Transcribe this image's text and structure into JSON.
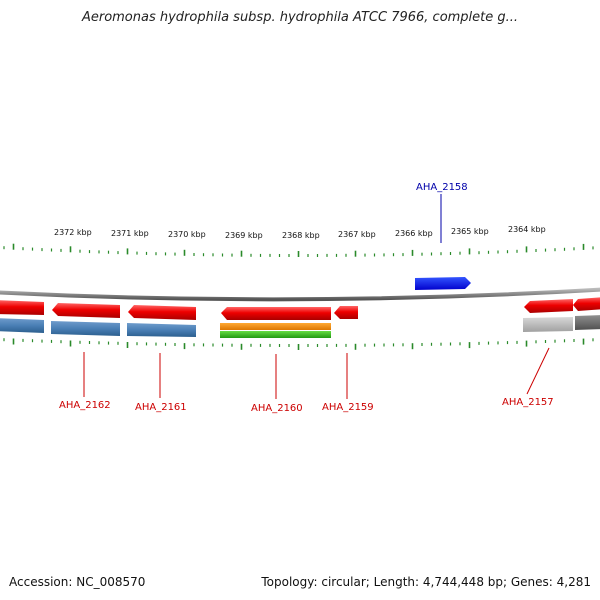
{
  "title": "Aeromonas hydrophila subsp. hydrophila ATCC 7966, complete g...",
  "footer": {
    "accession": "Accession: NC_008570",
    "summary": "Topology: circular; Length: 4,744,448 bp; Genes: 4,281"
  },
  "ticks": [
    {
      "label": "2372 kbp"
    },
    {
      "label": "2371 kbp"
    },
    {
      "label": "2370 kbp"
    },
    {
      "label": "2369 kbp"
    },
    {
      "label": "2368 kbp"
    },
    {
      "label": "2367 kbp"
    },
    {
      "label": "2366 kbp"
    },
    {
      "label": "2365 kbp"
    },
    {
      "label": "2364 kbp"
    }
  ],
  "genes": [
    {
      "name": "AHA_2162",
      "color": "#cc0000"
    },
    {
      "name": "AHA_2161",
      "color": "#cc0000"
    },
    {
      "name": "AHA_2160",
      "color": "#cc0000"
    },
    {
      "name": "AHA_2159",
      "color": "#cc0000"
    },
    {
      "name": "AHA_2158",
      "color": "#0000aa"
    },
    {
      "name": "AHA_2157",
      "color": "#cc0000"
    }
  ]
}
